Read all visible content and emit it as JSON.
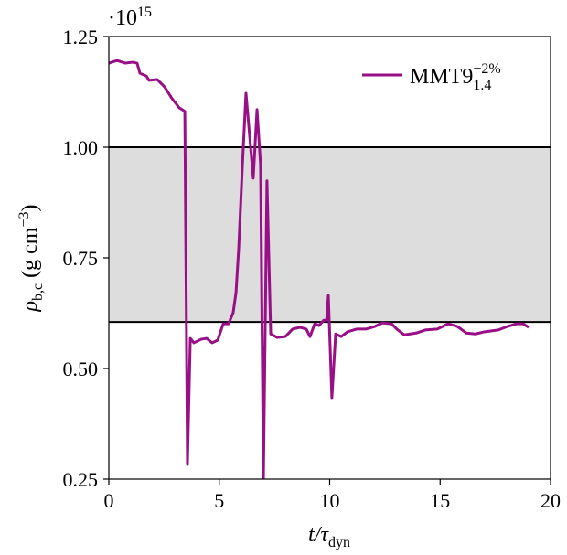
{
  "chart_data": {
    "type": "line",
    "y_multiplier": "·10",
    "y_multiplier_exp": "15",
    "xlabel": {
      "main": "t/τ",
      "sub": "dyn"
    },
    "ylabel": {
      "main": "ρ",
      "sub": "b,c",
      "unit": " (g cm",
      "sup": "−3",
      "close": ")"
    },
    "xlim": [
      0,
      20
    ],
    "ylim": [
      0.25,
      1.25
    ],
    "xticks": [
      0,
      5,
      10,
      15,
      20
    ],
    "yticks": [
      0.25,
      {
        "value": 0.5,
        "label": "0.50"
      },
      0.75,
      {
        "value": 1.0,
        "label": "1.00"
      },
      1.25
    ],
    "band": [
      0.605,
      1.0
    ],
    "band_color": "#dddddd",
    "legend": "upper right",
    "x": [
      0,
      0.37,
      0.75,
      1.08,
      1.28,
      1.41,
      1.7,
      1.82,
      2.19,
      2.53,
      2.86,
      3.19,
      3.44,
      3.56,
      3.69,
      3.85,
      4.18,
      4.43,
      4.68,
      4.93,
      5.18,
      5.42,
      5.63,
      5.76,
      5.88,
      6.05,
      6.21,
      6.38,
      6.54,
      6.71,
      6.87,
      7.0,
      7.16,
      7.33,
      7.62,
      7.99,
      8.32,
      8.65,
      8.94,
      9.11,
      9.32,
      9.52,
      9.73,
      9.86,
      9.94,
      10.1,
      10.27,
      10.52,
      10.81,
      11.22,
      11.64,
      12.05,
      12.38,
      12.8,
      13.04,
      13.37,
      13.91,
      14.33,
      14.87,
      15.36,
      15.78,
      16.19,
      16.6,
      17.02,
      17.64,
      18.05,
      18.47,
      18.76,
      19.01
    ],
    "series": [
      {
        "name": "MMT9",
        "name_sub": "1.4",
        "name_sup": "−2%",
        "color": "#990f87",
        "values": [
          1.19,
          1.196,
          1.19,
          1.192,
          1.19,
          1.167,
          1.161,
          1.151,
          1.153,
          1.136,
          1.11,
          1.089,
          1.081,
          0.283,
          0.568,
          0.558,
          0.566,
          0.568,
          0.558,
          0.564,
          0.601,
          0.601,
          0.626,
          0.672,
          0.771,
          0.961,
          1.122,
          1.023,
          0.93,
          1.085,
          0.961,
          0.25,
          0.924,
          0.578,
          0.57,
          0.572,
          0.589,
          0.593,
          0.589,
          0.572,
          0.601,
          0.597,
          0.609,
          0.609,
          0.665,
          0.434,
          0.578,
          0.572,
          0.583,
          0.589,
          0.589,
          0.595,
          0.603,
          0.601,
          0.589,
          0.576,
          0.58,
          0.587,
          0.589,
          0.601,
          0.595,
          0.58,
          0.578,
          0.583,
          0.587,
          0.595,
          0.601,
          0.601,
          0.593
        ]
      }
    ]
  }
}
